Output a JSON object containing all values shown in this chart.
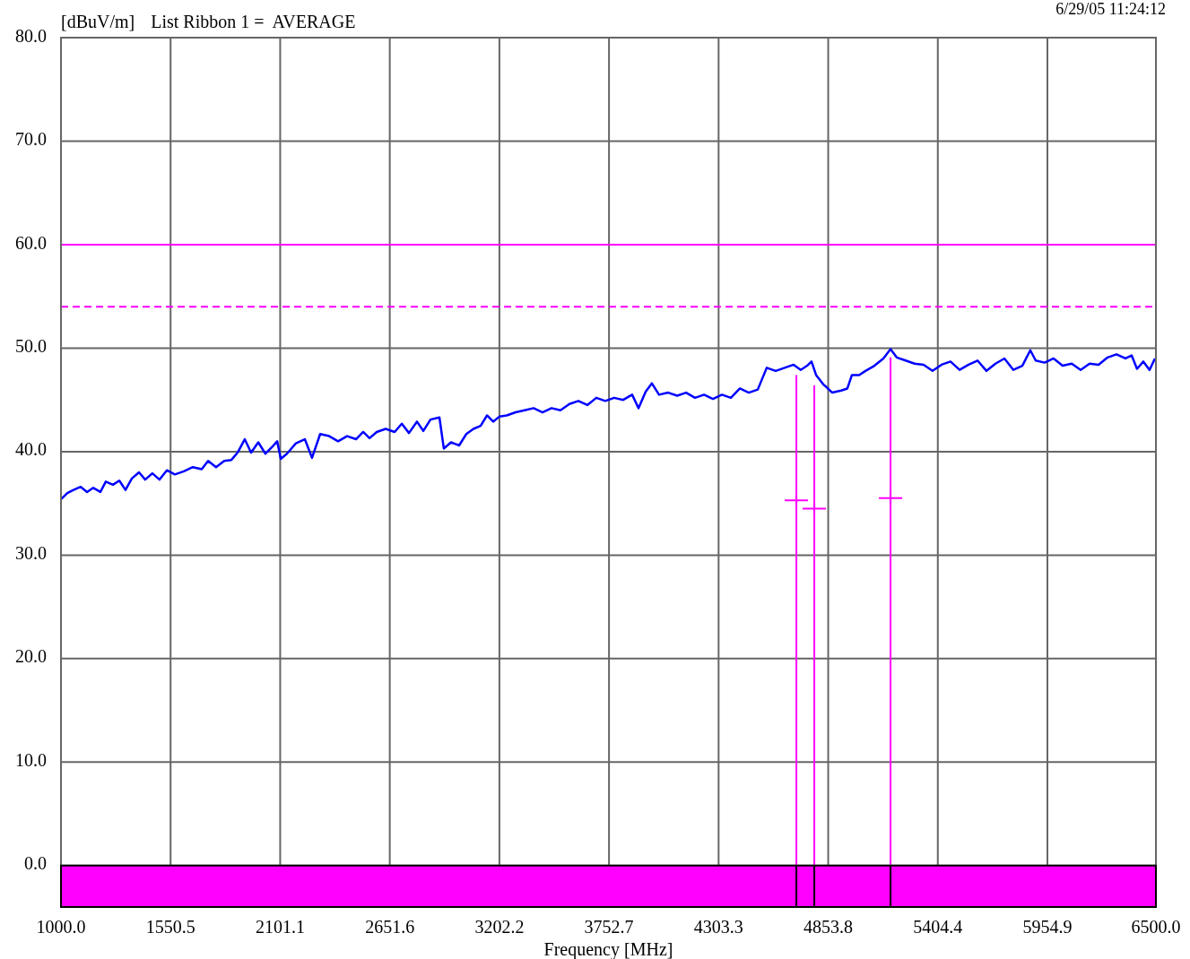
{
  "chart_data": {
    "type": "line",
    "title": "List Ribbon 1 =  AVERAGE",
    "ylabel": "[dBuV/m]",
    "xlabel": "Frequency [MHz]",
    "annotations": [
      "6/29/05 11:24:12"
    ],
    "xlim": [
      1000,
      6500
    ],
    "xticks": [
      {
        "value": 1000,
        "label": "1000.0"
      },
      {
        "value": 1550.5,
        "label": "1550.5"
      },
      {
        "value": 2101.1,
        "label": "2101.1"
      },
      {
        "value": 2651.6,
        "label": "2651.6"
      },
      {
        "value": 3202.2,
        "label": "3202.2"
      },
      {
        "value": 3752.7,
        "label": "3752.7"
      },
      {
        "value": 4303.3,
        "label": "4303.3"
      },
      {
        "value": 4853.8,
        "label": "4853.8"
      },
      {
        "value": 5404.4,
        "label": "5404.4"
      },
      {
        "value": 5954.9,
        "label": "5954.9"
      },
      {
        "value": 6500,
        "label": "6500.0"
      }
    ],
    "ylim": [
      -4,
      80
    ],
    "yticks": [
      {
        "value": 0,
        "label": "0.0"
      },
      {
        "value": 10,
        "label": "10.0"
      },
      {
        "value": 20,
        "label": "20.0"
      },
      {
        "value": 30,
        "label": "30.0"
      },
      {
        "value": 40,
        "label": "40.0"
      },
      {
        "value": 50,
        "label": "50.0"
      },
      {
        "value": 60,
        "label": "60.0"
      },
      {
        "value": 70,
        "label": "70.0"
      },
      {
        "value": 80,
        "label": "80.0"
      }
    ],
    "grid": true,
    "ref_lines": [
      {
        "axis": "y",
        "value": 60,
        "color": "#ff00ff",
        "line_style": "solid"
      },
      {
        "axis": "y",
        "value": 54,
        "color": "#ff00ff",
        "line_style": "dashed"
      }
    ],
    "series": [
      {
        "color": "#0000ff",
        "line_style": "solid",
        "marker": "none",
        "x": [
          1000,
          1032,
          1063,
          1099,
          1131,
          1162,
          1198,
          1225,
          1261,
          1293,
          1324,
          1356,
          1392,
          1423,
          1459,
          1495,
          1532,
          1572,
          1617,
          1662,
          1707,
          1739,
          1779,
          1820,
          1856,
          1887,
          1923,
          1955,
          1991,
          2027,
          2063,
          2086,
          2104,
          2135,
          2180,
          2225,
          2261,
          2302,
          2347,
          2392,
          2437,
          2482,
          2518,
          2550,
          2586,
          2631,
          2676,
          2712,
          2748,
          2788,
          2820,
          2856,
          2901,
          2923,
          2959,
          3000,
          3036,
          3072,
          3108,
          3140,
          3171,
          3203,
          3239,
          3284,
          3329,
          3374,
          3419,
          3464,
          3509,
          3554,
          3599,
          3644,
          3689,
          3734,
          3779,
          3824,
          3869,
          3901,
          3937,
          3968,
          4004,
          4050,
          4095,
          4140,
          4185,
          4230,
          4275,
          4320,
          4365,
          4410,
          4455,
          4500,
          4545,
          4590,
          4635,
          4680,
          4716,
          4748,
          4770,
          4793,
          4829,
          4847,
          4874,
          4919,
          4950,
          4973,
          5009,
          5041,
          5086,
          5131,
          5167,
          5198,
          5243,
          5288,
          5333,
          5378,
          5423,
          5468,
          5514,
          5559,
          5604,
          5649,
          5694,
          5739,
          5784,
          5829,
          5869,
          5896,
          5941,
          5986,
          6031,
          6077,
          6122,
          6167,
          6212,
          6257,
          6302,
          6347,
          6378,
          6405,
          6437,
          6468,
          6495
        ],
        "values": [
          35.4,
          36.0,
          36.3,
          36.6,
          36.1,
          36.5,
          36.1,
          37.1,
          36.8,
          37.2,
          36.3,
          37.4,
          38.0,
          37.3,
          37.9,
          37.3,
          38.2,
          37.8,
          38.1,
          38.5,
          38.3,
          39.1,
          38.5,
          39.1,
          39.2,
          39.9,
          41.2,
          39.9,
          40.9,
          39.8,
          40.5,
          41.0,
          39.3,
          39.8,
          40.8,
          41.2,
          39.4,
          41.7,
          41.5,
          41.0,
          41.5,
          41.2,
          41.9,
          41.3,
          41.9,
          42.2,
          41.9,
          42.7,
          41.8,
          42.9,
          42.0,
          43.1,
          43.3,
          40.3,
          40.9,
          40.6,
          41.7,
          42.2,
          42.5,
          43.5,
          42.9,
          43.4,
          43.5,
          43.8,
          44.0,
          44.2,
          43.8,
          44.2,
          44.0,
          44.6,
          44.9,
          44.5,
          45.2,
          44.9,
          45.2,
          45.0,
          45.5,
          44.2,
          45.8,
          46.6,
          45.5,
          45.7,
          45.4,
          45.7,
          45.2,
          45.5,
          45.1,
          45.5,
          45.2,
          46.1,
          45.7,
          46.0,
          48.1,
          47.8,
          48.1,
          48.4,
          47.9,
          48.3,
          48.7,
          47.4,
          46.5,
          46.2,
          45.7,
          45.9,
          46.1,
          47.4,
          47.4,
          47.8,
          48.3,
          49.0,
          49.9,
          49.1,
          48.8,
          48.5,
          48.4,
          47.8,
          48.4,
          48.7,
          47.9,
          48.4,
          48.8,
          47.8,
          48.5,
          49.0,
          47.9,
          48.3,
          49.8,
          48.8,
          48.6,
          49.0,
          48.3,
          48.5,
          47.9,
          48.5,
          48.4,
          49.1,
          49.4,
          49.0,
          49.3,
          48.0,
          48.7,
          47.9,
          49.0
        ]
      },
      {
        "type": "bar",
        "color": "#ff00ff",
        "x": [
          4694,
          4784,
          5167
        ],
        "values": [
          47.4,
          46.4,
          49.1
        ]
      },
      {
        "type": "scatter",
        "color": "#ff00ff",
        "marker": "cross",
        "x": [
          4694,
          4784,
          5167
        ],
        "values": [
          35.3,
          34.5,
          35.5
        ]
      }
    ]
  }
}
